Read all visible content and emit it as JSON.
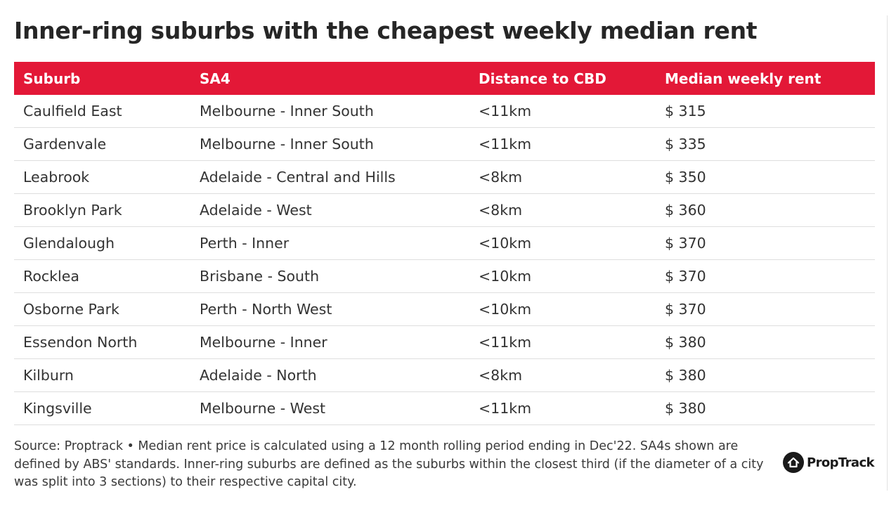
{
  "title": "Inner-ring suburbs with the cheapest weekly median rent",
  "chart_data": {
    "type": "table",
    "title": "Inner-ring suburbs with the cheapest weekly median rent",
    "columns": [
      "Suburb",
      "SA4",
      "Distance to CBD",
      "Median weekly rent"
    ],
    "rows": [
      [
        "Caulfield East",
        "Melbourne - Inner South",
        "<11km",
        "$ 315"
      ],
      [
        "Gardenvale",
        "Melbourne - Inner South",
        "<11km",
        "$ 335"
      ],
      [
        "Leabrook",
        "Adelaide - Central and Hills",
        "<8km",
        "$ 350"
      ],
      [
        "Brooklyn Park",
        "Adelaide - West",
        "<8km",
        "$ 360"
      ],
      [
        "Glendalough",
        "Perth - Inner",
        "<10km",
        "$ 370"
      ],
      [
        "Rocklea",
        "Brisbane - South",
        "<10km",
        "$ 370"
      ],
      [
        "Osborne Park",
        "Perth - North West",
        "<10km",
        "$ 370"
      ],
      [
        "Essendon North",
        "Melbourne - Inner",
        "<11km",
        "$ 380"
      ],
      [
        "Kilburn",
        "Adelaide - North",
        "<8km",
        "$ 380"
      ],
      [
        "Kingsville",
        "Melbourne - West",
        "<11km",
        "$ 380"
      ]
    ]
  },
  "footer": {
    "source_note": "Source: Proptrack • Median rent price is calculated using a 12 month rolling period ending in Dec'22. SA4s shown are defined by ABS' standards. Inner-ring suburbs are defined as the suburbs within the closest third (if the diameter of a city was split into 3 sections) to their respective capital city."
  },
  "logo": {
    "text": "PropTrack",
    "icon": "house-icon"
  },
  "colors": {
    "header_bg": "#e31837",
    "header_text": "#ffffff",
    "row_divider": "#dedede",
    "logo": "#1a1a1a"
  }
}
